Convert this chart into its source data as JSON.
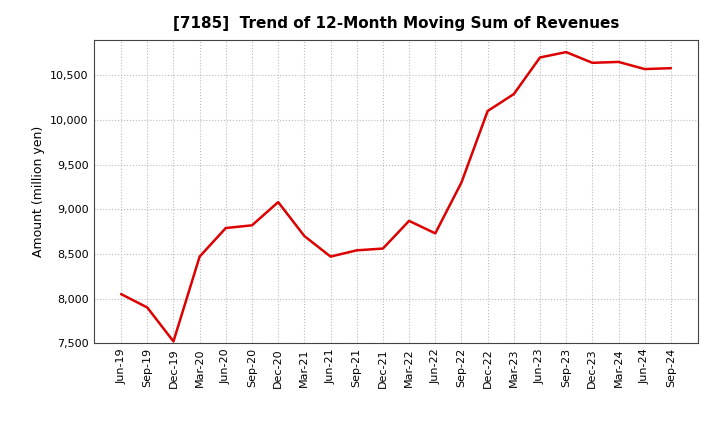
{
  "title": "[7185]  Trend of 12-Month Moving Sum of Revenues",
  "ylabel": "Amount (million yen)",
  "line_color": "#dd0000",
  "background_color": "#ffffff",
  "plot_bg_color": "#ffffff",
  "grid_color": "#bbbbbb",
  "ylim": [
    7500,
    10900
  ],
  "yticks": [
    7500,
    8000,
    8500,
    9000,
    9500,
    10000,
    10500
  ],
  "title_fontsize": 11,
  "ylabel_fontsize": 9,
  "tick_fontsize": 8,
  "line_width": 1.8,
  "labels": [
    "Jun-19",
    "Sep-19",
    "Dec-19",
    "Mar-20",
    "Jun-20",
    "Sep-20",
    "Dec-20",
    "Mar-21",
    "Jun-21",
    "Sep-21",
    "Dec-21",
    "Mar-22",
    "Jun-22",
    "Sep-22",
    "Dec-22",
    "Mar-23",
    "Jun-23",
    "Sep-23",
    "Dec-23",
    "Mar-24",
    "Jun-24",
    "Sep-24"
  ],
  "values": [
    8050,
    7900,
    7520,
    8470,
    8790,
    8820,
    9080,
    8700,
    8470,
    8540,
    8560,
    8870,
    8730,
    9300,
    10100,
    10290,
    10700,
    10760,
    10640,
    10650,
    10570,
    10580
  ]
}
